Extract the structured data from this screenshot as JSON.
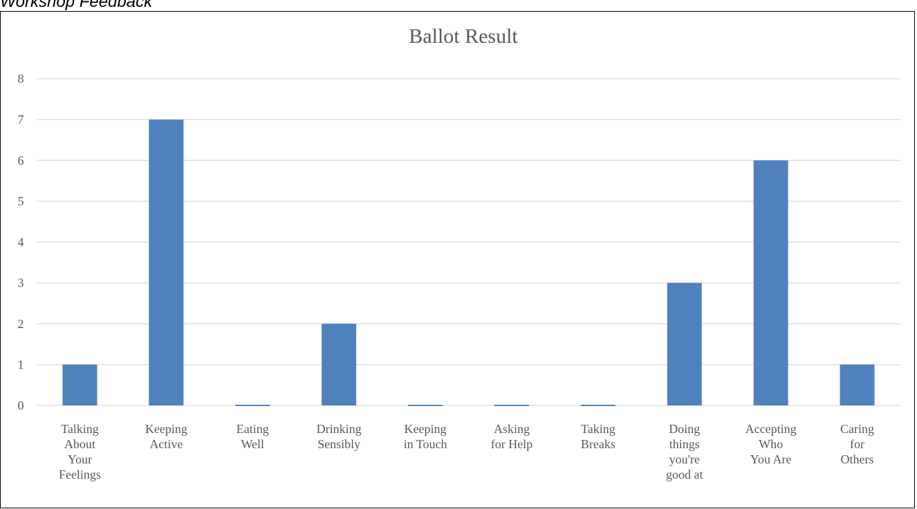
{
  "page": {
    "heading": "Workshop Feedback"
  },
  "chart_data": {
    "type": "bar",
    "title": "Ballot Result",
    "xlabel": "",
    "ylabel": "",
    "categories": [
      "Talking About Your Feelings",
      "Keeping Active",
      "Eating Well",
      "Drinking Sensibly",
      "Keeping in Touch",
      "Asking for Help",
      "Taking Breaks",
      "Doing things you're good at",
      "Accepting Who You Are",
      "Caring for Others"
    ],
    "category_lines": [
      [
        "Talking",
        "About",
        "Your",
        "Feelings"
      ],
      [
        "Keeping",
        "Active"
      ],
      [
        "Eating",
        "Well"
      ],
      [
        "Drinking",
        "Sensibly"
      ],
      [
        "Keeping",
        "in Touch"
      ],
      [
        "Asking",
        "for Help"
      ],
      [
        "Taking",
        "Breaks"
      ],
      [
        "Doing",
        "things",
        "you're",
        "good at"
      ],
      [
        "Accepting",
        "Who",
        "You Are"
      ],
      [
        "Caring",
        "for",
        "Others"
      ]
    ],
    "values": [
      1,
      7,
      0,
      2,
      0,
      0,
      0,
      3,
      6,
      1
    ],
    "ylim": [
      0,
      8
    ],
    "yticks": [
      "0",
      "1",
      "2",
      "3",
      "4",
      "5",
      "6",
      "7",
      "8"
    ],
    "grid": true,
    "legend": "none",
    "colors": {
      "bar": "#4F81BD",
      "grid": "#D9D9D9",
      "title": "#595959",
      "tick_label": "#595959"
    }
  }
}
